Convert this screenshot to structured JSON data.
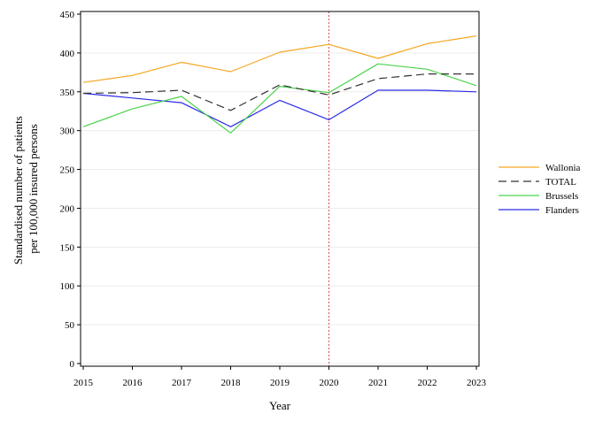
{
  "chart_data": {
    "type": "line",
    "title": "",
    "xlabel": "Year",
    "ylabel_lines": [
      "Standardised number of patients",
      "per 100,000 insured persons"
    ],
    "x": [
      2015,
      2016,
      2017,
      2018,
      2019,
      2020,
      2021,
      2022,
      2023
    ],
    "xlim": [
      2015,
      2023
    ],
    "ylim": [
      0,
      450
    ],
    "yticks": [
      0,
      50,
      100,
      150,
      200,
      250,
      300,
      350,
      400,
      450
    ],
    "grid": "horizontal",
    "legend_position": "right",
    "reference_line": {
      "x": 2020,
      "color": "#d9534f",
      "style": "dotted"
    },
    "series": [
      {
        "name": "Wallonia",
        "color": "#f5a623",
        "dash": "solid",
        "values": [
          362,
          371,
          388,
          376,
          401,
          411,
          393,
          412,
          422
        ]
      },
      {
        "name": "TOTAL",
        "color": "#333333",
        "dash": "dashed",
        "values": [
          348,
          349,
          352,
          326,
          359,
          346,
          367,
          373,
          373
        ]
      },
      {
        "name": "Brussels",
        "color": "#4cd34c",
        "dash": "solid",
        "values": [
          305,
          328,
          344,
          297,
          357,
          349,
          386,
          379,
          358
        ]
      },
      {
        "name": "Flanders",
        "color": "#2a2ae8",
        "dash": "solid",
        "values": [
          348,
          342,
          336,
          305,
          339,
          314,
          352,
          352,
          350
        ]
      }
    ]
  }
}
